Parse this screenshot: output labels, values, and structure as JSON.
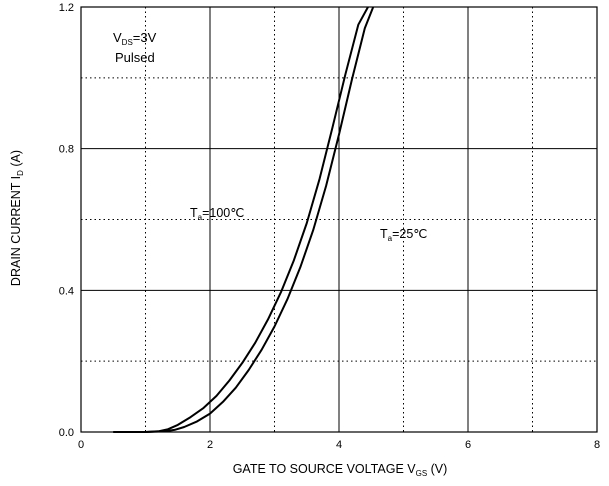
{
  "chart_data": {
    "type": "line",
    "xlim": [
      0,
      8
    ],
    "ylim": [
      0,
      1.2
    ],
    "x_ticks": [
      0,
      2,
      4,
      6,
      8
    ],
    "x_tick_labels": [
      "0",
      "2",
      "4",
      "6",
      "8"
    ],
    "x_minor_grid": [
      1,
      3,
      5,
      7
    ],
    "y_ticks": [
      0,
      0.4,
      0.8,
      1.2
    ],
    "y_tick_labels": [
      "0.0",
      "0.4",
      "0.8",
      "1.2"
    ],
    "y_minor_grid": [
      0.2,
      0.6,
      1.0
    ],
    "grid": true,
    "xlabel": {
      "main": "GATE TO SOURCE VOLTAGE    V",
      "sub": "GS",
      "unit": "    (V)"
    },
    "ylabel": {
      "main": "DRAIN CURRENT    I",
      "sub": "D",
      "unit": "    (A)"
    },
    "conditions": {
      "vds_main": "V",
      "vds_sub": "DS",
      "vds_value": "=3V",
      "mode": "Pulsed"
    },
    "series": [
      {
        "name_main": "T",
        "name_sub": "a",
        "name_value": "=100℃",
        "x": [
          0.5,
          1.0,
          1.2,
          1.35,
          1.5,
          1.7,
          1.9,
          2.1,
          2.3,
          2.5,
          2.7,
          2.9,
          3.1,
          3.3,
          3.5,
          3.7,
          3.9,
          4.1,
          4.3,
          4.45
        ],
        "y": [
          0.0,
          0.0,
          0.002,
          0.008,
          0.02,
          0.042,
          0.068,
          0.102,
          0.145,
          0.195,
          0.252,
          0.318,
          0.395,
          0.485,
          0.59,
          0.715,
          0.86,
          1.01,
          1.15,
          1.2
        ]
      },
      {
        "name_main": "T",
        "name_sub": "a",
        "name_value": "=25℃",
        "x": [
          0.5,
          1.0,
          1.3,
          1.45,
          1.6,
          1.8,
          2.0,
          2.2,
          2.4,
          2.6,
          2.8,
          3.0,
          3.2,
          3.4,
          3.6,
          3.8,
          4.0,
          4.2,
          4.4,
          4.53
        ],
        "y": [
          0.0,
          0.0,
          0.002,
          0.006,
          0.014,
          0.03,
          0.052,
          0.085,
          0.125,
          0.175,
          0.232,
          0.298,
          0.375,
          0.465,
          0.57,
          0.695,
          0.84,
          0.995,
          1.14,
          1.2
        ]
      }
    ]
  }
}
